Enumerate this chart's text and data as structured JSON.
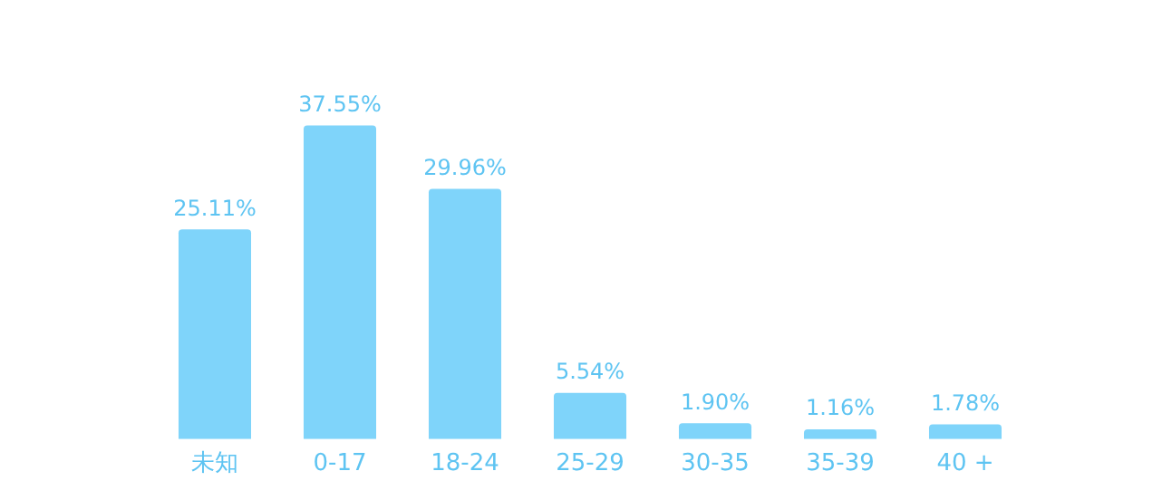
{
  "chart_data": {
    "type": "bar",
    "categories": [
      "未知",
      "0-17",
      "18-24",
      "25-29",
      "30-35",
      "35-39",
      "40 +"
    ],
    "values": [
      25.11,
      37.55,
      29.96,
      5.54,
      1.9,
      1.16,
      1.78
    ],
    "value_labels": [
      "25.11%",
      "37.55%",
      "29.96%",
      "5.54%",
      "1.90%",
      "1.16%",
      "1.78%"
    ],
    "color": "#7fd4fa",
    "grid": false,
    "legend": false
  }
}
